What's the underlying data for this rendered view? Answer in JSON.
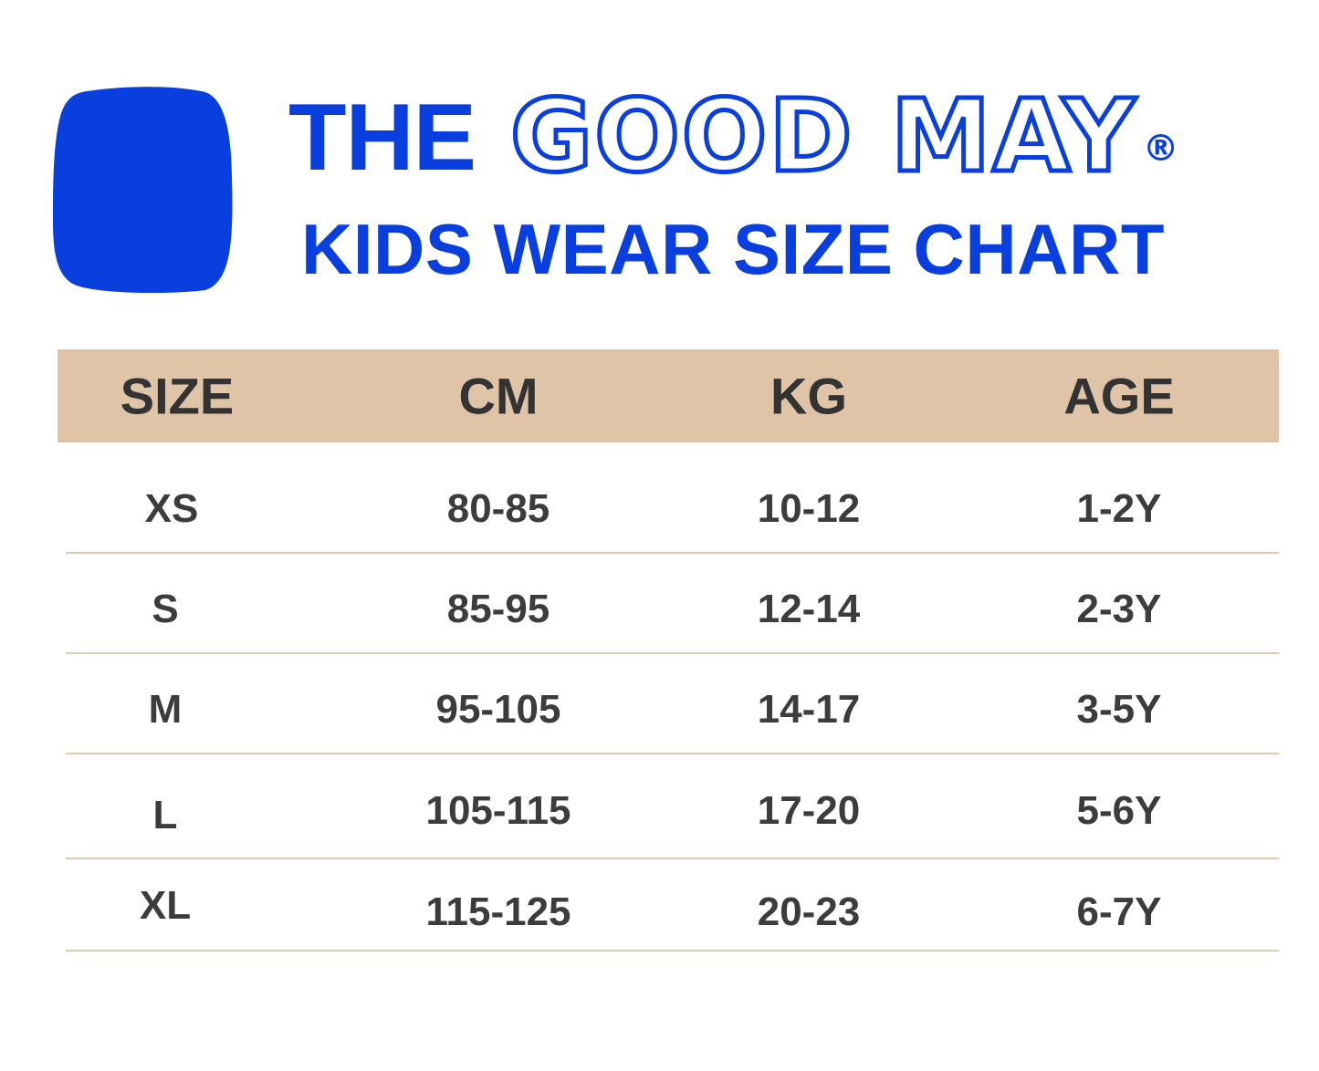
{
  "brand": {
    "the": "THE",
    "name": "GOOD MAY",
    "reg": "®",
    "subtitle": "KIDS WEAR SIZE CHART",
    "color": "#0a3fdf"
  },
  "table": {
    "header_color": "#dfc4a8",
    "divider_color": "#e6c9ad",
    "columns": [
      "SIZE",
      "CM",
      "KG",
      "AGE"
    ],
    "rows": [
      {
        "size": "XS",
        "cm": "80-85",
        "kg": "10-12",
        "age": "1-2Y"
      },
      {
        "size": "S",
        "cm": "85-95",
        "kg": "12-14",
        "age": "2-3Y"
      },
      {
        "size": "M",
        "cm": "95-105",
        "kg": "14-17",
        "age": "3-5Y"
      },
      {
        "size": "L",
        "cm": "105-115",
        "kg": "17-20",
        "age": "5-6Y"
      },
      {
        "size": "XL",
        "cm": "115-125",
        "kg": "20-23",
        "age": "6-7Y"
      }
    ]
  }
}
